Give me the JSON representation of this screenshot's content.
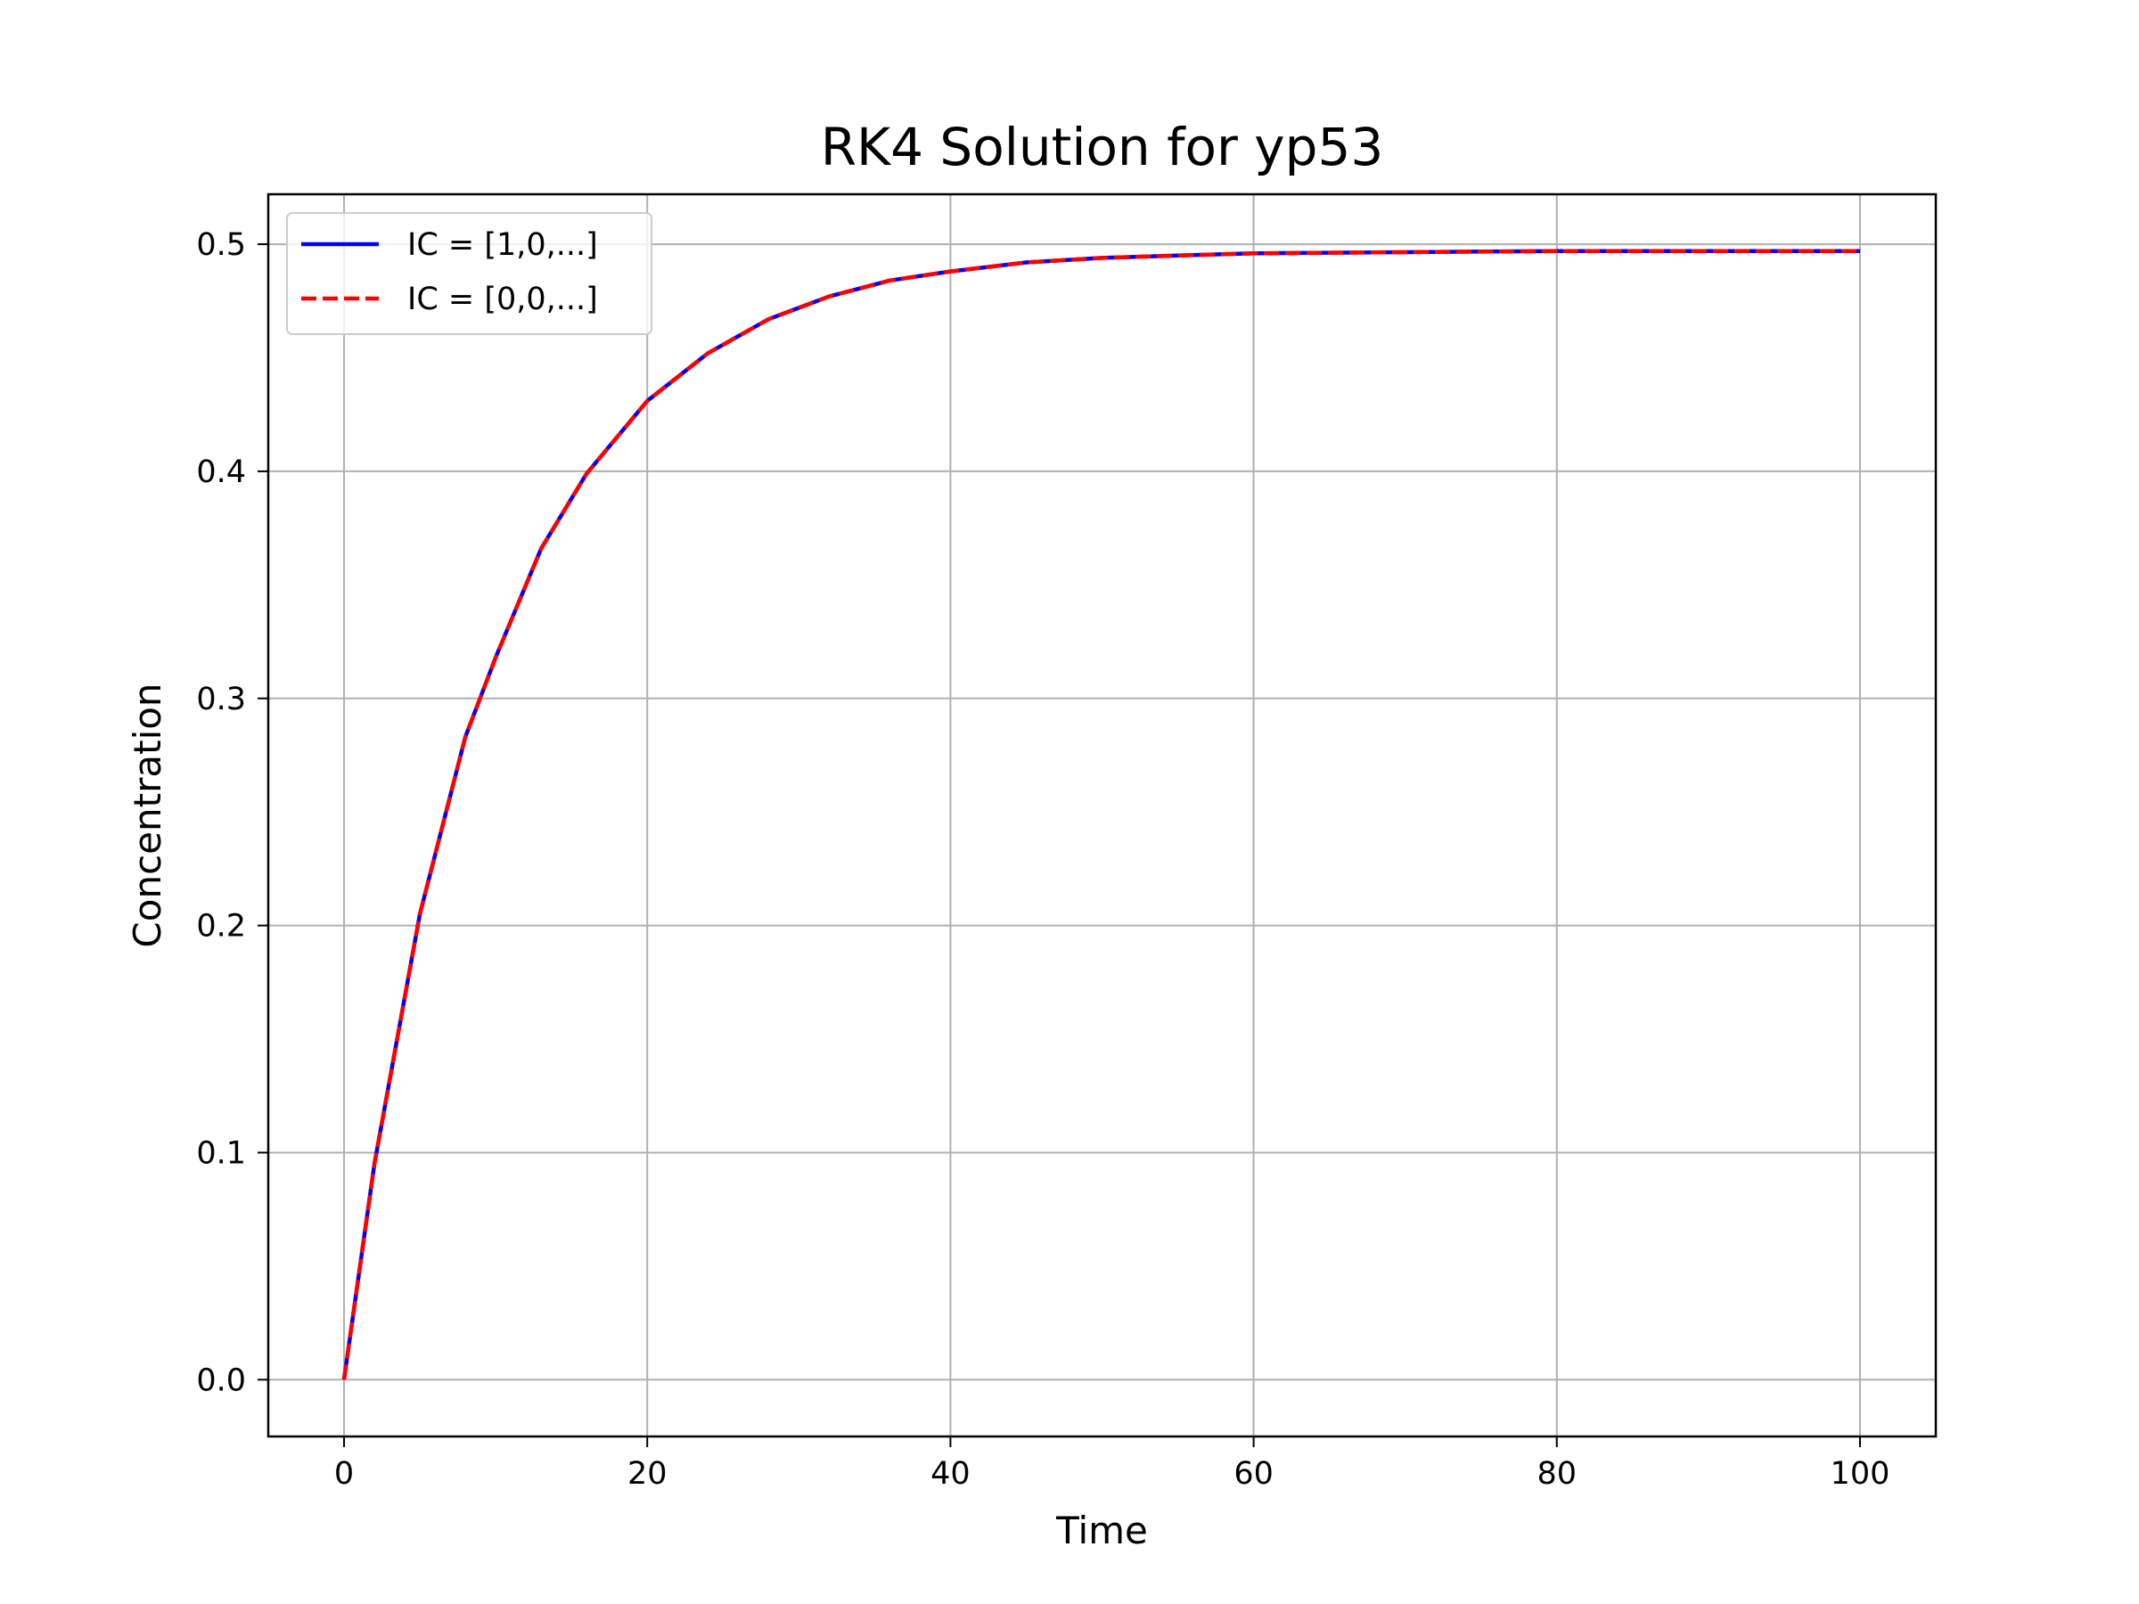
{
  "chart_data": {
    "type": "line",
    "title": "RK4 Solution for yp53",
    "xlabel": "Time",
    "ylabel": "Concentration",
    "xlim": [
      -5,
      105
    ],
    "ylim": [
      -0.025,
      0.522
    ],
    "xticks": [
      0,
      20,
      40,
      60,
      80,
      100
    ],
    "xtick_labels": [
      "0",
      "20",
      "40",
      "60",
      "80",
      "100"
    ],
    "yticks": [
      0.0,
      0.1,
      0.2,
      0.3,
      0.4,
      0.5
    ],
    "ytick_labels": [
      "0.0",
      "0.1",
      "0.2",
      "0.3",
      "0.4",
      "0.5"
    ],
    "grid": true,
    "legend_position": "top-left",
    "series": [
      {
        "name": "IC = [1,0,...]",
        "color": "#0000ff",
        "style": "solid",
        "x": [
          0,
          2,
          5,
          8,
          10,
          13,
          16,
          20,
          24,
          28,
          32,
          36,
          40,
          45,
          50,
          55,
          60,
          70,
          80,
          90,
          100
        ],
        "y": [
          0.0,
          0.095,
          0.205,
          0.283,
          0.318,
          0.366,
          0.399,
          0.431,
          0.452,
          0.467,
          0.477,
          0.484,
          0.488,
          0.492,
          0.494,
          0.495,
          0.496,
          0.4965,
          0.497,
          0.497,
          0.497
        ]
      },
      {
        "name": "IC = [0,0,...]",
        "color": "#ff0000",
        "style": "dashed",
        "x": [
          0,
          2,
          5,
          8,
          10,
          13,
          16,
          20,
          24,
          28,
          32,
          36,
          40,
          45,
          50,
          55,
          60,
          70,
          80,
          90,
          100
        ],
        "y": [
          0.0,
          0.095,
          0.205,
          0.283,
          0.318,
          0.366,
          0.399,
          0.431,
          0.452,
          0.467,
          0.477,
          0.484,
          0.488,
          0.492,
          0.494,
          0.495,
          0.496,
          0.4965,
          0.497,
          0.497,
          0.497
        ]
      }
    ]
  }
}
